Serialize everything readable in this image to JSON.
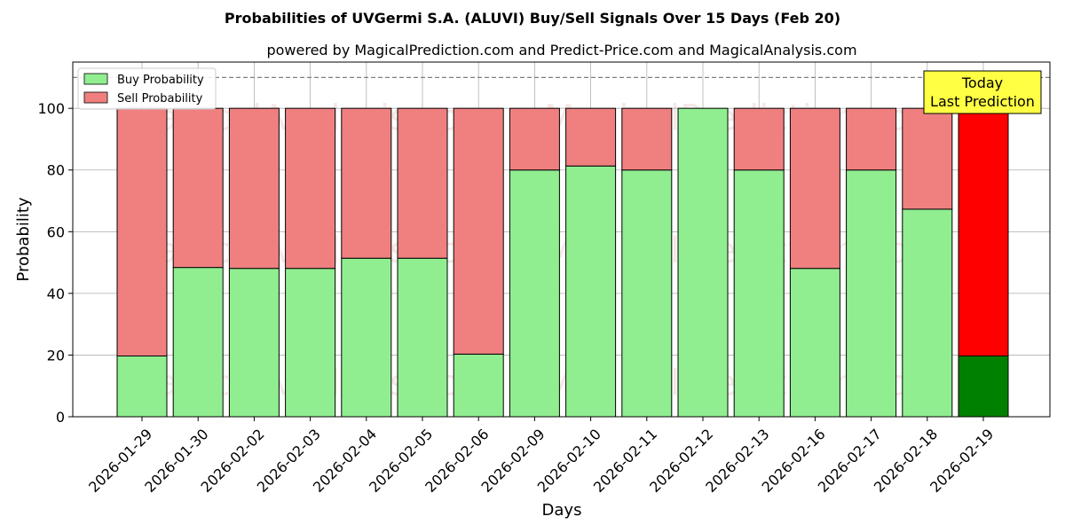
{
  "chart_data": {
    "type": "bar",
    "stacked": true,
    "title": "Probabilities of UVGermi S.A. (ALUVI) Buy/Sell Signals Over 15 Days (Feb 20)",
    "subtitle": "powered by MagicalPrediction.com and Predict-Price.com and MagicalAnalysis.com",
    "xlabel": "Days",
    "ylabel": "Probability",
    "ylim": [
      0,
      115
    ],
    "yticks": [
      0,
      20,
      40,
      60,
      80,
      100
    ],
    "reference_line": 110,
    "grid": true,
    "legend_position": "top-left",
    "categories": [
      "2026-01-29",
      "2026-01-30",
      "2026-02-02",
      "2026-02-03",
      "2026-02-04",
      "2026-02-05",
      "2026-02-06",
      "2026-02-09",
      "2026-02-10",
      "2026-02-11",
      "2026-02-12",
      "2026-02-13",
      "2026-02-16",
      "2026-02-17",
      "2026-02-18",
      "2026-02-19"
    ],
    "series": [
      {
        "name": "Buy Probability",
        "color": "#90ee90",
        "values": [
          19.7,
          48.4,
          48.1,
          48.1,
          51.4,
          51.4,
          20.3,
          80.0,
          81.3,
          80.0,
          100.0,
          80.0,
          48.1,
          80.0,
          67.3,
          19.7
        ]
      },
      {
        "name": "Sell Probability",
        "color": "#f08080",
        "values": [
          80.3,
          51.6,
          51.9,
          51.9,
          48.6,
          48.6,
          79.7,
          20.0,
          18.7,
          20.0,
          0.0,
          20.0,
          51.9,
          20.0,
          32.7,
          80.3
        ]
      }
    ],
    "highlight": {
      "index": 15,
      "buy_color": "#008000",
      "sell_color": "#ff0000"
    },
    "annotation": {
      "line1": "Today",
      "line2": "Last Prediction",
      "background": "#ffff44"
    },
    "watermarks": [
      "MagicalAnalysis.com",
      "MagicalPrediction.com"
    ]
  }
}
